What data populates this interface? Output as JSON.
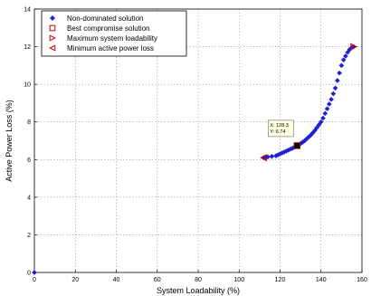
{
  "chart_data": {
    "type": "scatter",
    "xlabel": "System Loadability (%)",
    "ylabel": "Active Power Loss (%)",
    "xlim": [
      0,
      160
    ],
    "ylim": [
      0,
      14
    ],
    "xticks": [
      0,
      20,
      40,
      60,
      80,
      100,
      120,
      140,
      160
    ],
    "yticks": [
      0,
      2,
      4,
      6,
      8,
      10,
      12,
      14
    ],
    "grid": true,
    "legend_position": "top-left",
    "series": [
      {
        "name": "Non-dominated solution",
        "marker": "diamond",
        "color": "#1f1fd6",
        "points": [
          [
            0,
            0
          ],
          [
            112,
            6.1
          ],
          [
            113,
            6.12
          ],
          [
            114,
            6.14
          ],
          [
            116,
            6.17
          ],
          [
            118,
            6.2
          ],
          [
            119,
            6.25
          ],
          [
            120,
            6.3
          ],
          [
            121,
            6.35
          ],
          [
            122,
            6.4
          ],
          [
            123,
            6.45
          ],
          [
            124,
            6.5
          ],
          [
            125,
            6.55
          ],
          [
            126,
            6.6
          ],
          [
            127,
            6.66
          ],
          [
            129,
            6.78
          ],
          [
            130,
            6.85
          ],
          [
            131,
            6.92
          ],
          [
            132,
            7.0
          ],
          [
            133,
            7.1
          ],
          [
            134,
            7.2
          ],
          [
            135,
            7.3
          ],
          [
            136,
            7.42
          ],
          [
            137,
            7.55
          ],
          [
            138,
            7.7
          ],
          [
            139,
            7.85
          ],
          [
            140,
            8.0
          ],
          [
            141,
            8.2
          ],
          [
            142,
            8.45
          ],
          [
            143,
            8.7
          ],
          [
            144,
            8.95
          ],
          [
            145,
            9.2
          ],
          [
            146,
            9.5
          ],
          [
            147,
            9.8
          ],
          [
            148,
            10.2
          ],
          [
            149,
            10.6
          ],
          [
            150,
            11.0
          ],
          [
            151,
            11.3
          ],
          [
            152,
            11.5
          ],
          [
            153,
            11.7
          ],
          [
            154,
            11.85
          ],
          [
            155,
            11.95
          ],
          [
            156,
            12.0
          ]
        ]
      },
      {
        "name": "Best compromise solution",
        "marker": "square",
        "color": "#cc0000",
        "points": [
          [
            128.3,
            6.74
          ]
        ]
      },
      {
        "name": "Maximum system loadability",
        "marker": "triangle-right",
        "color": "#cc0000",
        "points": [
          [
            156,
            12.0
          ]
        ]
      },
      {
        "name": "Minimum active power loss",
        "marker": "triangle-left",
        "color": "#cc0000",
        "points": [
          [
            112,
            6.1
          ]
        ]
      }
    ],
    "annotations": [
      {
        "x": 128.3,
        "y": 6.74,
        "lines": [
          "X: 128.3",
          "Y: 6.74"
        ]
      }
    ]
  }
}
